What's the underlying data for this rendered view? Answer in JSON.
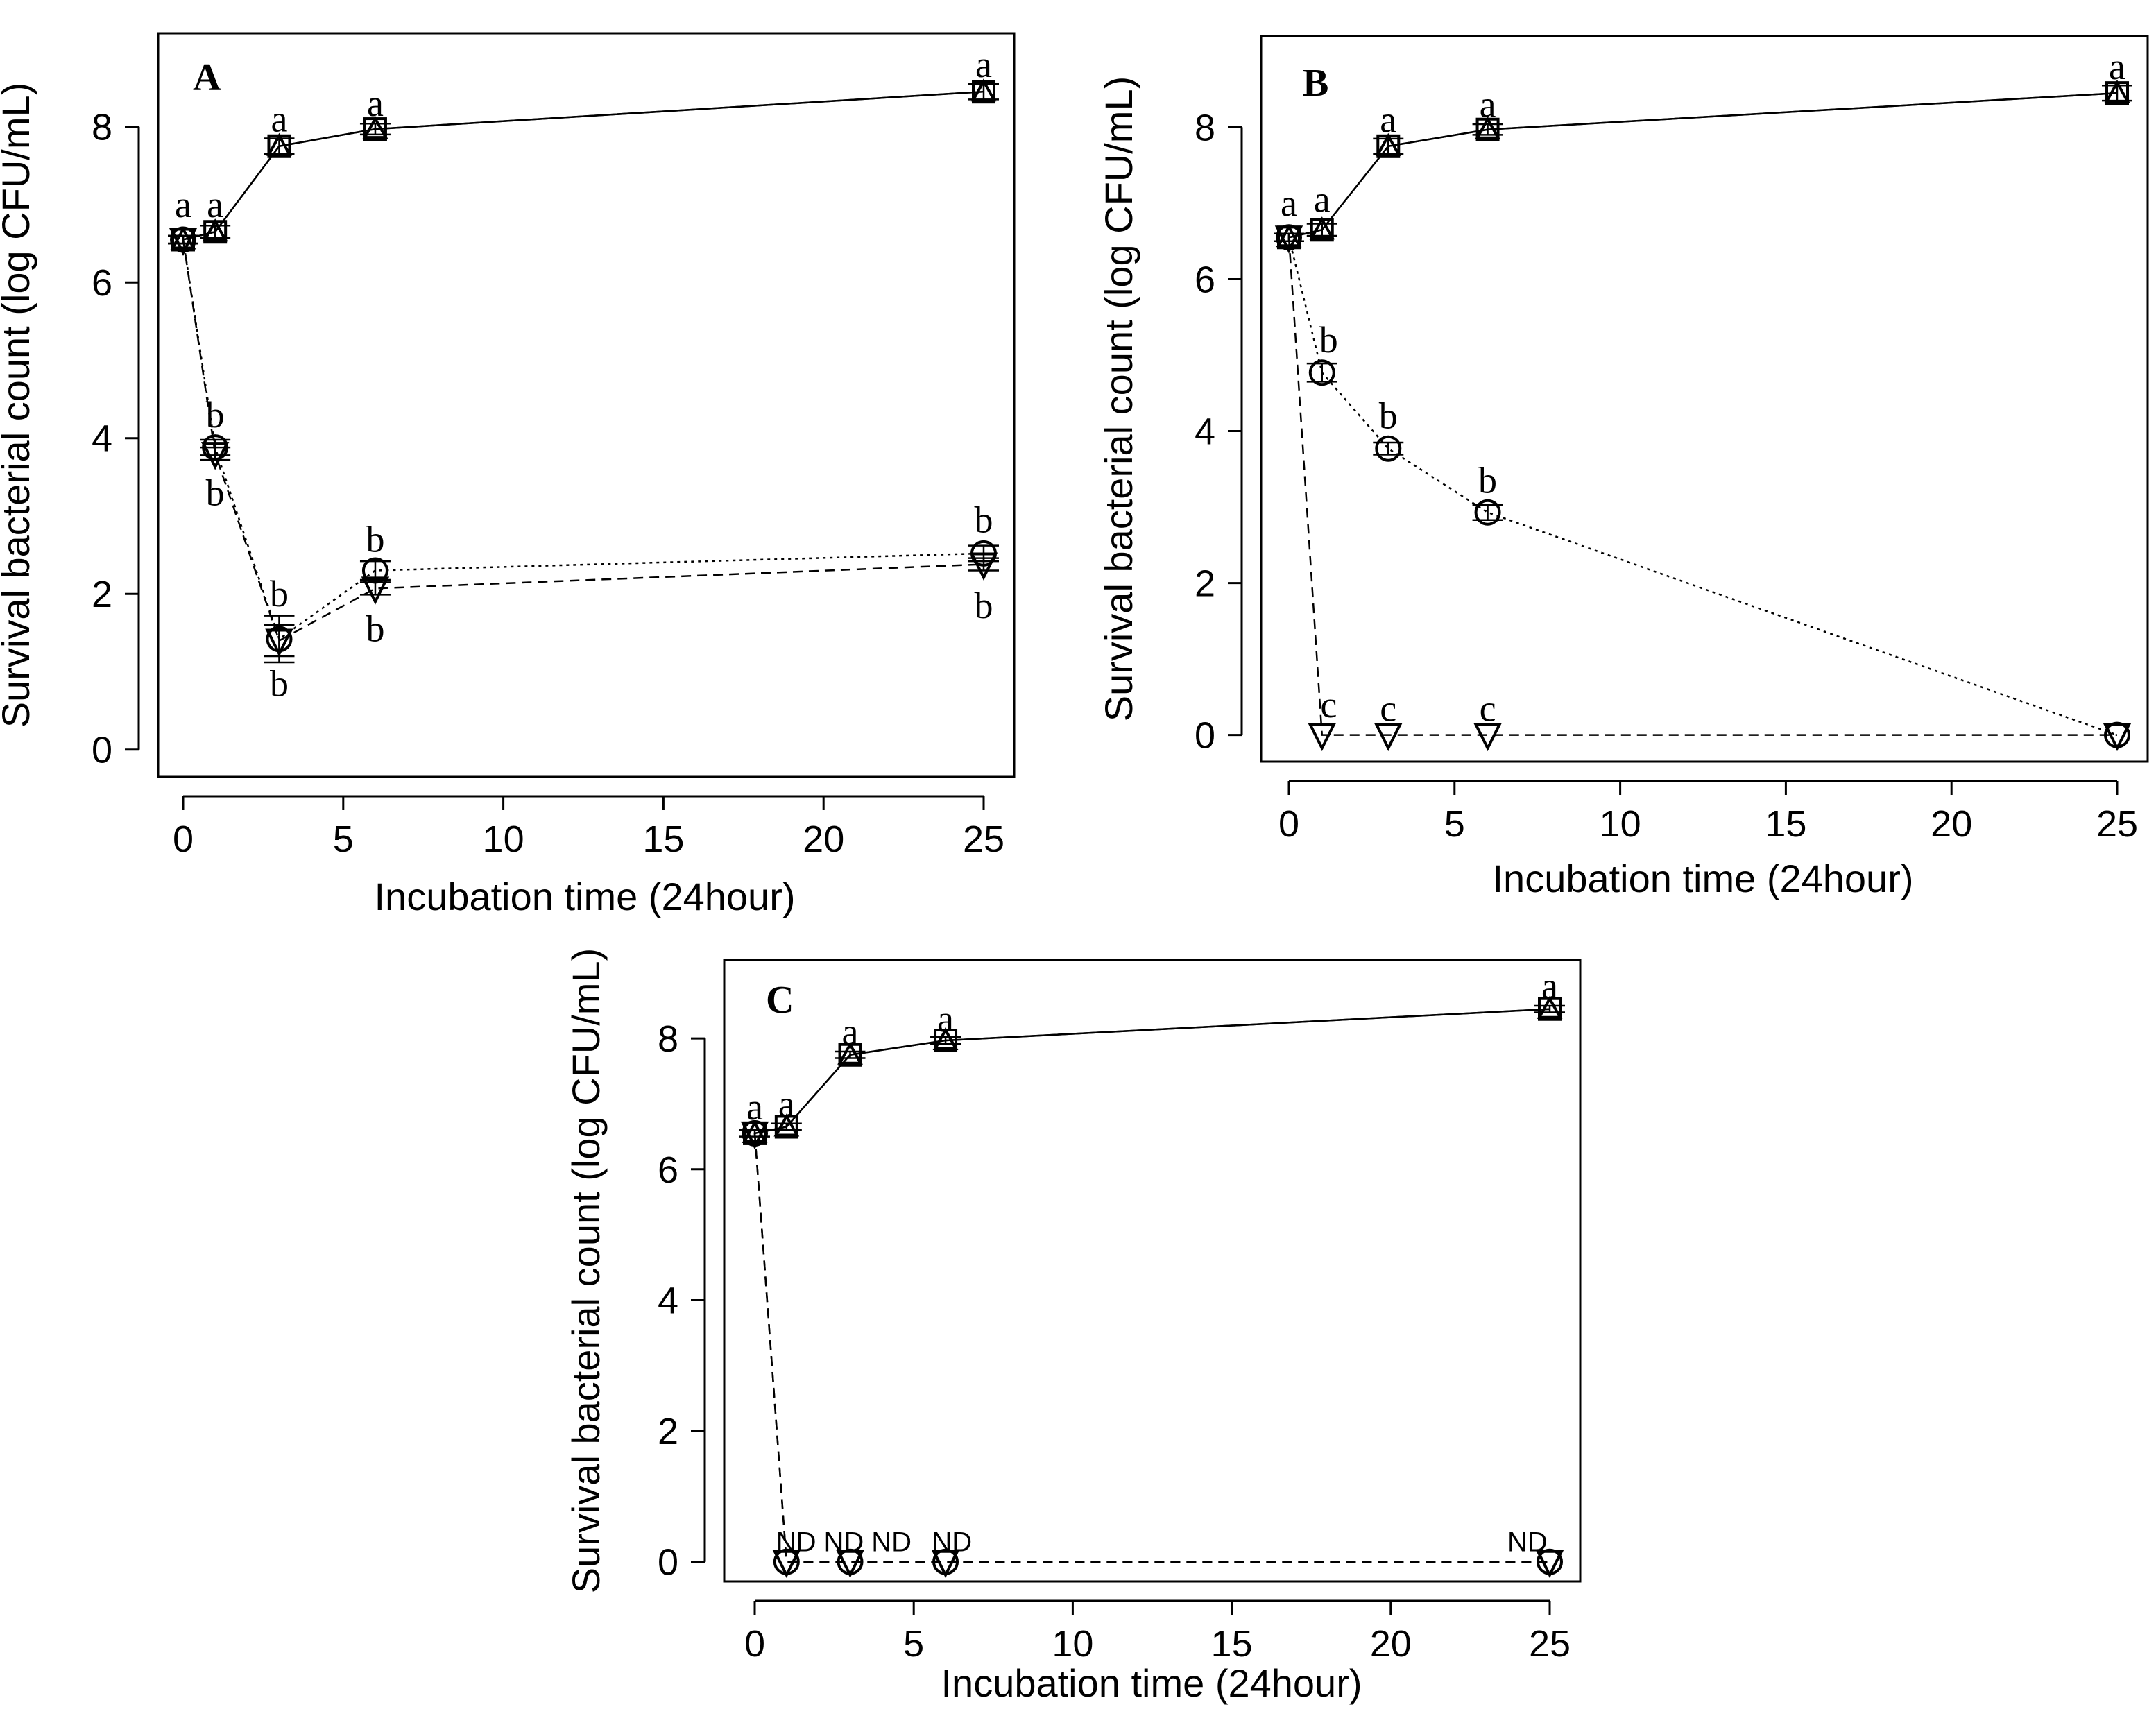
{
  "chart_data": [
    {
      "type": "line",
      "panel": "A",
      "xlabel": "Incubation time (24hour)",
      "ylabel": "Survival bacterial count (log CFU/mL)",
      "xlim": [
        0,
        25
      ],
      "ylim": [
        0,
        9.2
      ],
      "xticks": [
        0,
        5,
        10,
        15,
        20,
        25
      ],
      "yticks": [
        0,
        2,
        4,
        6,
        8
      ],
      "series": [
        {
          "name": "square",
          "marker": "square",
          "line": "solid",
          "x": [
            0,
            1,
            3,
            6,
            25
          ],
          "y": [
            6.55,
            6.65,
            7.75,
            7.97,
            8.45
          ],
          "err": [
            0.05,
            0.08,
            0.1,
            0.07,
            0.1
          ]
        },
        {
          "name": "triangle-up",
          "marker": "triangle-up",
          "line": "solid",
          "x": [
            0,
            1,
            3,
            6,
            25
          ],
          "y": [
            6.55,
            6.65,
            7.75,
            7.97,
            8.45
          ],
          "err": [
            0,
            0,
            0,
            0,
            0
          ]
        },
        {
          "name": "circle",
          "marker": "circle",
          "line": "dotted",
          "x": [
            0,
            1,
            3,
            6,
            25
          ],
          "y": [
            6.55,
            3.88,
            1.42,
            2.3,
            2.52
          ],
          "err": [
            0.05,
            0.1,
            0.3,
            0.12,
            0.1
          ]
        },
        {
          "name": "triangle-down",
          "marker": "triangle-down",
          "line": "dashed",
          "x": [
            0,
            1,
            3,
            6,
            25
          ],
          "y": [
            6.55,
            3.8,
            1.4,
            2.07,
            2.38
          ],
          "err": [
            0.05,
            0.08,
            0.2,
            0.08,
            0.08
          ]
        }
      ],
      "annotations": [
        {
          "text": "a",
          "x": 0,
          "y": 7.0,
          "pos": "above"
        },
        {
          "text": "a",
          "x": 1,
          "y": 7.0,
          "pos": "above"
        },
        {
          "text": "a",
          "x": 3,
          "y": 8.1,
          "pos": "above"
        },
        {
          "text": "a",
          "x": 6,
          "y": 8.3,
          "pos": "above"
        },
        {
          "text": "a",
          "x": 25,
          "y": 8.8,
          "pos": "above"
        },
        {
          "text": "b",
          "x": 1,
          "y": 4.3,
          "pos": "above"
        },
        {
          "text": "b",
          "x": 1,
          "y": 3.3,
          "pos": "below"
        },
        {
          "text": "b",
          "x": 3,
          "y": 2.0,
          "pos": "above"
        },
        {
          "text": "b",
          "x": 3,
          "y": 0.85,
          "pos": "below"
        },
        {
          "text": "b",
          "x": 6,
          "y": 2.7,
          "pos": "above"
        },
        {
          "text": "b",
          "x": 6,
          "y": 1.55,
          "pos": "below"
        },
        {
          "text": "b",
          "x": 25,
          "y": 2.95,
          "pos": "above"
        },
        {
          "text": "b",
          "x": 25,
          "y": 1.85,
          "pos": "below"
        }
      ],
      "label": "A"
    },
    {
      "type": "line",
      "panel": "B",
      "xlabel": "Incubation time (24hour)",
      "ylabel": "Survival bacterial count (log CFU/mL)",
      "xlim": [
        0,
        25
      ],
      "ylim": [
        0,
        9.2
      ],
      "xticks": [
        0,
        5,
        10,
        15,
        20,
        25
      ],
      "yticks": [
        0,
        2,
        4,
        6,
        8
      ],
      "series": [
        {
          "name": "square",
          "marker": "square",
          "line": "solid",
          "x": [
            0,
            1,
            3,
            6,
            25
          ],
          "y": [
            6.55,
            6.65,
            7.75,
            7.97,
            8.45
          ],
          "err": [
            0.05,
            0.08,
            0.1,
            0.07,
            0.1
          ]
        },
        {
          "name": "triangle-up",
          "marker": "triangle-up",
          "line": "solid",
          "x": [
            0,
            1,
            3,
            6,
            25
          ],
          "y": [
            6.55,
            6.65,
            7.75,
            7.97,
            8.45
          ],
          "err": [
            0,
            0,
            0,
            0,
            0
          ]
        },
        {
          "name": "circle",
          "marker": "circle",
          "line": "dotted",
          "x": [
            0,
            1,
            3,
            6,
            25
          ],
          "y": [
            6.55,
            4.77,
            3.77,
            2.93,
            0.0
          ],
          "err": [
            0.05,
            0.12,
            0.08,
            0.1,
            0.0
          ]
        },
        {
          "name": "triangle-down",
          "marker": "triangle-down",
          "line": "dashed",
          "x": [
            0,
            1,
            3,
            6,
            25
          ],
          "y": [
            6.55,
            0.0,
            0.0,
            0.0,
            0.0
          ],
          "err": [
            0.05,
            0,
            0,
            0,
            0
          ]
        }
      ],
      "annotations": [
        {
          "text": "a",
          "x": 0,
          "y": 7.0,
          "pos": "above"
        },
        {
          "text": "a",
          "x": 1,
          "y": 7.05,
          "pos": "above"
        },
        {
          "text": "a",
          "x": 3,
          "y": 8.1,
          "pos": "above"
        },
        {
          "text": "a",
          "x": 6,
          "y": 8.3,
          "pos": "above"
        },
        {
          "text": "a",
          "x": 25,
          "y": 8.8,
          "pos": "above"
        },
        {
          "text": "b",
          "x": 1.2,
          "y": 5.2,
          "pos": "above"
        },
        {
          "text": "b",
          "x": 3,
          "y": 4.2,
          "pos": "above"
        },
        {
          "text": "b",
          "x": 6,
          "y": 3.35,
          "pos": "above"
        },
        {
          "text": "c",
          "x": 1.2,
          "y": 0.4,
          "pos": "above"
        },
        {
          "text": "c",
          "x": 3,
          "y": 0.35,
          "pos": "above"
        },
        {
          "text": "c",
          "x": 6,
          "y": 0.35,
          "pos": "above"
        }
      ],
      "label": "B"
    },
    {
      "type": "line",
      "panel": "C",
      "xlabel": "Incubation time (24hour)",
      "ylabel": "Survival bacterial count (log CFU/mL)",
      "xlim": [
        0,
        25
      ],
      "ylim": [
        0,
        9.2
      ],
      "xticks": [
        0,
        5,
        10,
        15,
        20,
        25
      ],
      "yticks": [
        0,
        2,
        4,
        6,
        8
      ],
      "series": [
        {
          "name": "square",
          "marker": "square",
          "line": "solid",
          "x": [
            0,
            1,
            3,
            6,
            25
          ],
          "y": [
            6.55,
            6.65,
            7.75,
            7.97,
            8.45
          ],
          "err": [
            0.05,
            0.05,
            0.05,
            0.05,
            0.05
          ]
        },
        {
          "name": "triangle-up",
          "marker": "triangle-up",
          "line": "solid",
          "x": [
            0,
            1,
            3,
            6,
            25
          ],
          "y": [
            6.55,
            6.65,
            7.75,
            7.97,
            8.45
          ],
          "err": [
            0,
            0,
            0,
            0,
            0
          ]
        },
        {
          "name": "circle",
          "marker": "circle",
          "line": "dashed",
          "x": [
            0,
            1,
            3,
            6,
            25
          ],
          "y": [
            6.55,
            0.0,
            0.0,
            0.0,
            0.0
          ],
          "err": [
            0,
            0,
            0,
            0,
            0
          ]
        },
        {
          "name": "triangle-down",
          "marker": "triangle-down",
          "line": "dashed",
          "x": [
            0,
            1,
            3,
            6,
            25
          ],
          "y": [
            6.55,
            0.0,
            0.0,
            0.0,
            0.0
          ],
          "err": [
            0,
            0,
            0,
            0,
            0
          ]
        }
      ],
      "annotations": [
        {
          "text": "a",
          "x": 0,
          "y": 6.95,
          "pos": "above"
        },
        {
          "text": "a",
          "x": 1,
          "y": 7.0,
          "pos": "above"
        },
        {
          "text": "a",
          "x": 3,
          "y": 8.1,
          "pos": "above"
        },
        {
          "text": "a",
          "x": 6,
          "y": 8.3,
          "pos": "above"
        },
        {
          "text": "a",
          "x": 25,
          "y": 8.8,
          "pos": "above"
        },
        {
          "text": "ND",
          "x": 1.3,
          "y": 0.35,
          "pos": "above",
          "style": "sans"
        },
        {
          "text": "ND",
          "x": 2.8,
          "y": 0.35,
          "pos": "above",
          "style": "sans"
        },
        {
          "text": "ND",
          "x": 4.3,
          "y": 0.35,
          "pos": "above",
          "style": "sans"
        },
        {
          "text": "ND",
          "x": 6.2,
          "y": 0.35,
          "pos": "above",
          "style": "sans"
        },
        {
          "text": "ND",
          "x": 24.3,
          "y": 0.35,
          "pos": "above",
          "style": "sans"
        }
      ],
      "label": "C"
    }
  ]
}
